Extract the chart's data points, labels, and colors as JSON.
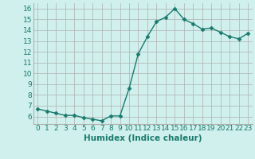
{
  "x": [
    0,
    1,
    2,
    3,
    4,
    5,
    6,
    7,
    8,
    9,
    10,
    11,
    12,
    13,
    14,
    15,
    16,
    17,
    18,
    19,
    20,
    21,
    22,
    23
  ],
  "y": [
    6.7,
    6.5,
    6.3,
    6.1,
    6.1,
    5.9,
    5.75,
    5.6,
    6.05,
    6.05,
    8.6,
    11.8,
    13.4,
    14.8,
    15.2,
    16.0,
    15.0,
    14.6,
    14.1,
    14.2,
    13.8,
    13.4,
    13.2,
    13.7
  ],
  "xlabel": "Humidex (Indice chaleur)",
  "ylim": [
    5.3,
    16.5
  ],
  "xlim": [
    -0.5,
    23.5
  ],
  "yticks": [
    6,
    7,
    8,
    9,
    10,
    11,
    12,
    13,
    14,
    15,
    16
  ],
  "xticks": [
    0,
    1,
    2,
    3,
    4,
    5,
    6,
    7,
    8,
    9,
    10,
    11,
    12,
    13,
    14,
    15,
    16,
    17,
    18,
    19,
    20,
    21,
    22,
    23
  ],
  "xtick_labels": [
    "0",
    "1",
    "2",
    "3",
    "4",
    "5",
    "6",
    "7",
    "8",
    "9",
    "10",
    "11",
    "12",
    "13",
    "14",
    "15",
    "16",
    "17",
    "18",
    "19",
    "20",
    "21",
    "22",
    "23"
  ],
  "line_color": "#1a7a6e",
  "marker_color": "#1a7a6e",
  "bg_color": "#cff0ec",
  "grid_color": "#b0b0b0",
  "font_color": "#1a7a6e",
  "tick_fontsize": 6.5,
  "xlabel_fontsize": 7.5,
  "marker_size": 2.5,
  "line_width": 1.0
}
